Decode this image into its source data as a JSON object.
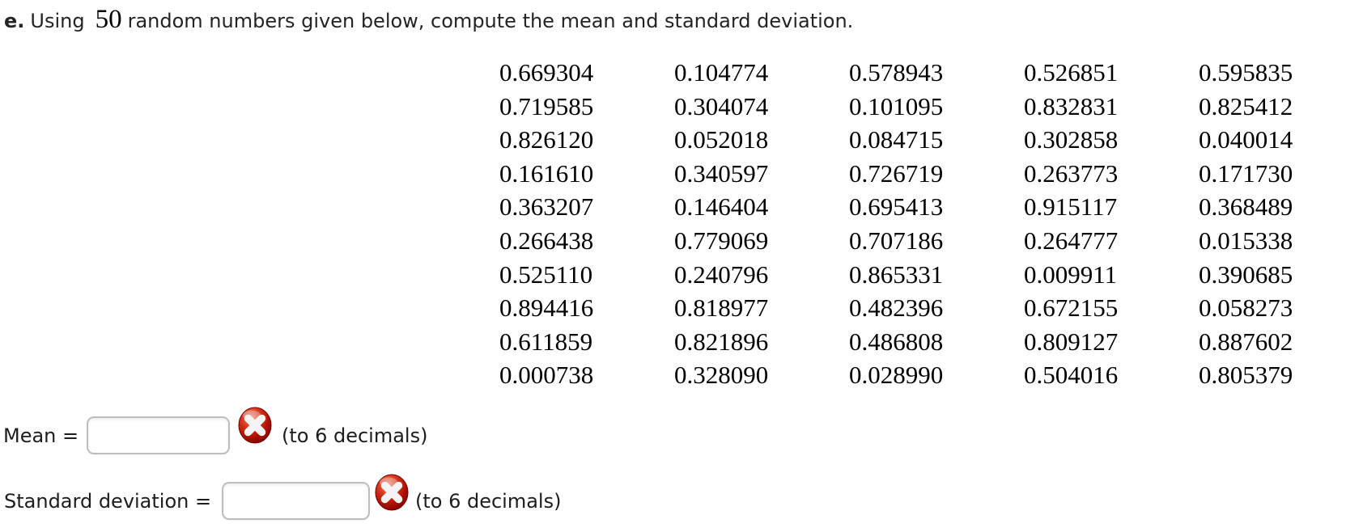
{
  "title": {
    "prefix": "e.",
    "part1": "Using",
    "count": "50",
    "part2": "random numbers given below, compute the mean and standard deviation."
  },
  "random_numbers": {
    "rows": [
      [
        "0.669304",
        "0.104774",
        "0.578943",
        "0.526851",
        "0.595835"
      ],
      [
        "0.719585",
        "0.304074",
        "0.101095",
        "0.832831",
        "0.825412"
      ],
      [
        "0.826120",
        "0.052018",
        "0.084715",
        "0.302858",
        "0.040014"
      ],
      [
        "0.161610",
        "0.340597",
        "0.726719",
        "0.263773",
        "0.171730"
      ],
      [
        "0.363207",
        "0.146404",
        "0.695413",
        "0.915117",
        "0.368489"
      ],
      [
        "0.266438",
        "0.779069",
        "0.707186",
        "0.264777",
        "0.015338"
      ],
      [
        "0.525110",
        "0.240796",
        "0.865331",
        "0.009911",
        "0.390685"
      ],
      [
        "0.894416",
        "0.818977",
        "0.482396",
        "0.672155",
        "0.058273"
      ],
      [
        "0.611859",
        "0.821896",
        "0.486808",
        "0.809127",
        "0.887602"
      ],
      [
        "0.000738",
        "0.328090",
        "0.028990",
        "0.504016",
        "0.805379"
      ]
    ]
  },
  "answers": [
    {
      "label": "Mean =",
      "value": "",
      "placeholder": "",
      "status": "incorrect",
      "icon": "incorrect-x-icon",
      "note": "(to 6 decimals)"
    },
    {
      "label": "Standard deviation =",
      "value": "",
      "placeholder": "",
      "status": "incorrect",
      "icon": "incorrect-x-icon",
      "note": "(to 6 decimals)"
    }
  ],
  "colors": {
    "page_background": "#ffffff",
    "text": "#1d1d1d",
    "number_text": "#000000",
    "input_border": "#bdbdbd",
    "incorrect_red_light": "#ef9181",
    "incorrect_red": "#c21a06",
    "incorrect_red_dark": "#7c0400",
    "incorrect_x_white": "#f4f4f4"
  }
}
